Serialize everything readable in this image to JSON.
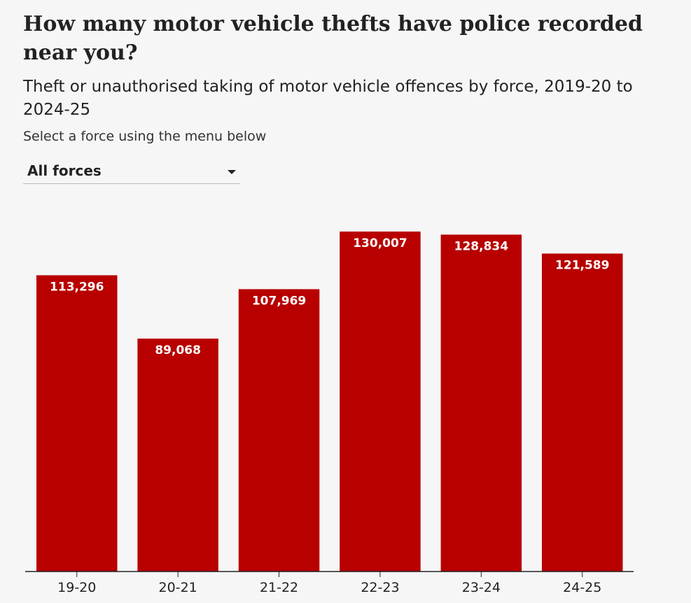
{
  "header": {
    "title": "How many motor vehicle thefts have police recorded near you?",
    "subtitle": "Theft or unauthorised taking of motor vehicle offences by force, 2019-20 to 2024-25",
    "instruction": "Select a force using the menu below"
  },
  "force_select": {
    "selected": "All forces",
    "icon": "caret-down-icon"
  },
  "colors": {
    "bar": "#b80000",
    "axis": "#222222",
    "background": "#f6f6f6"
  },
  "chart_data": {
    "type": "bar",
    "title": "How many motor vehicle thefts have police recorded near you?",
    "xlabel": "",
    "ylabel": "",
    "categories": [
      "19-20",
      "20-21",
      "21-22",
      "22-23",
      "23-24",
      "24-25"
    ],
    "values": [
      113296,
      89068,
      107969,
      130007,
      128834,
      121589
    ],
    "value_labels": [
      "113,296",
      "89,068",
      "107,969",
      "130,007",
      "128,834",
      "121,589"
    ],
    "ylim": [
      0,
      130007
    ],
    "grid": false,
    "legend": "none"
  }
}
